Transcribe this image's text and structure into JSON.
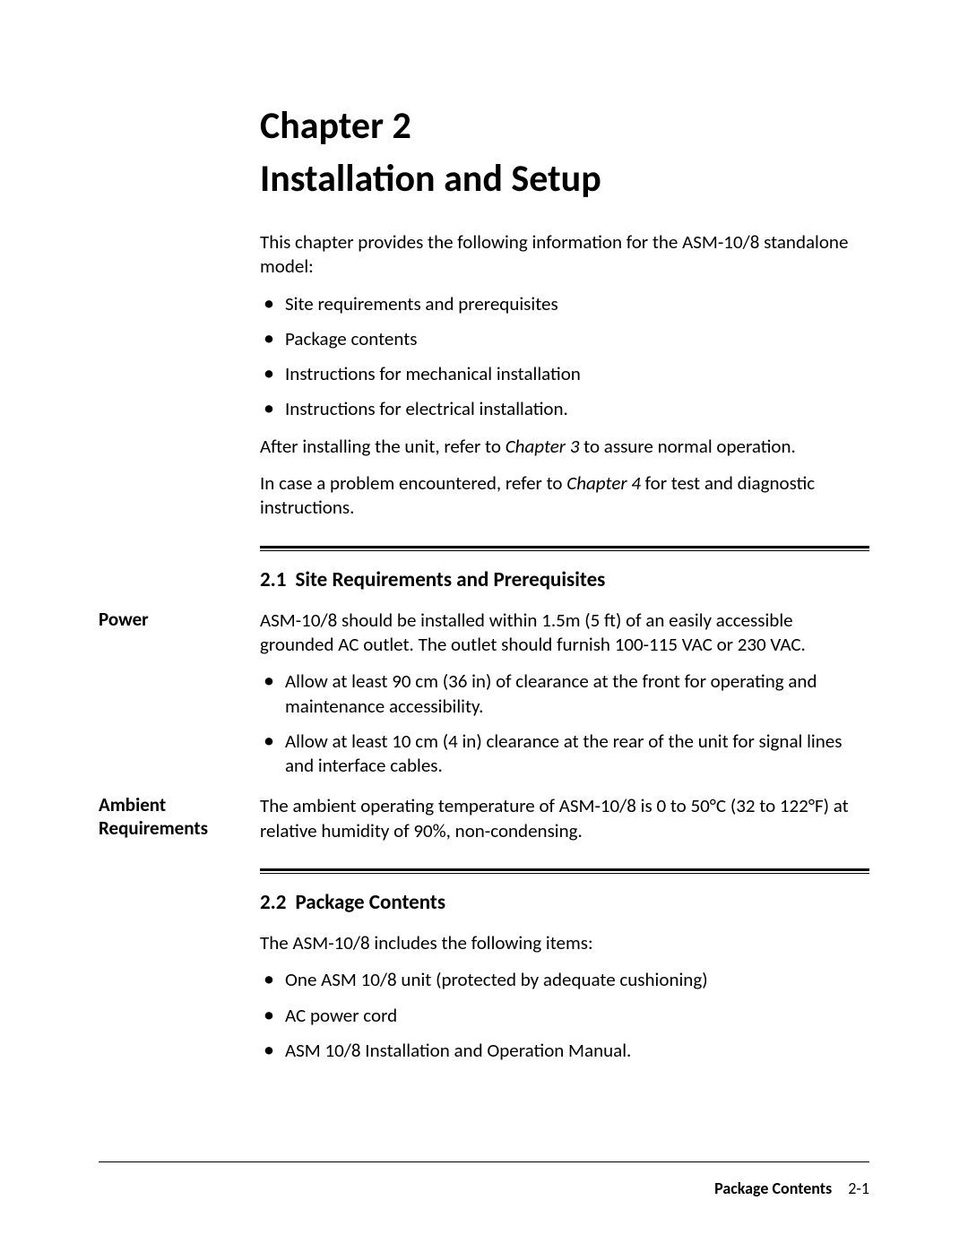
{
  "chapter": {
    "label": "Chapter 2",
    "title": "Installation and Setup"
  },
  "intro": {
    "lead": "This chapter provides the following information for the ASM-10/8 standalone model:",
    "bullets": [
      "Site requirements and prerequisites",
      "Package contents",
      "Instructions for mechanical installation",
      "Instructions for electrical installation."
    ],
    "after1_pre": "After installing the unit, refer to ",
    "after1_em": "Chapter 3",
    "after1_post": " to assure normal operation.",
    "after2_pre": "In case a problem encountered, refer to ",
    "after2_em": "Chapter 4",
    "after2_post": " for test and diagnostic instructions."
  },
  "s21": {
    "num": "2.1",
    "title": "Site Requirements and Prerequisites",
    "power": {
      "side": "Power",
      "para": "ASM-10/8 should be installed within 1.5m (5 ft) of an easily accessible grounded AC outlet. The outlet should furnish 100-115 VAC or 230 VAC.",
      "bullets": [
        "Allow at least 90 cm (36 in) of clearance at the front for operating and maintenance accessibility.",
        "Allow at least 10 cm (4 in) clearance at the rear of the unit for signal lines and interface cables."
      ]
    },
    "ambient": {
      "side": "Ambient Requirements",
      "para": "The ambient operating temperature of ASM-10/8 is 0 to 50°C (32 to 122°F) at relative humidity of 90%, non-condensing."
    }
  },
  "s22": {
    "num": "2.2",
    "title": "Package Contents",
    "lead": "The ASM-10/8 includes the following items:",
    "bullets": [
      "One ASM 10/8 unit (protected by adequate cushioning)",
      "AC power cord",
      "ASM 10/8 Installation and Operation Manual."
    ]
  },
  "footer": {
    "label": "Package Contents",
    "page": "2-1"
  }
}
